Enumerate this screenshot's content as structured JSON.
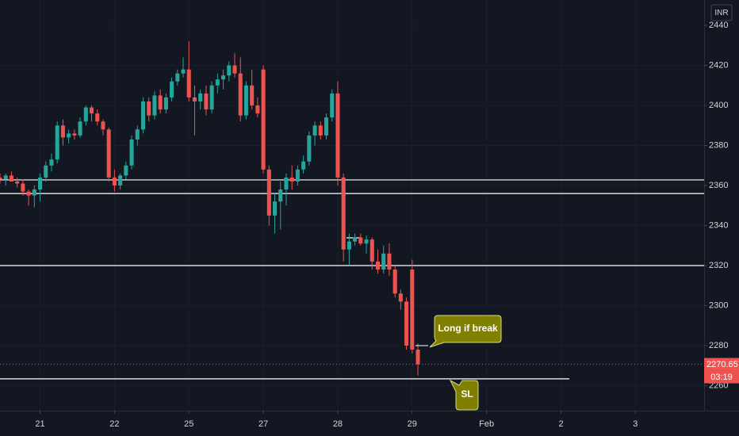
{
  "chart_data": {
    "type": "candlestick",
    "currency": "INR",
    "up_color": "#26a69a",
    "down_color": "#ef5350",
    "grid": true,
    "ylim": [
      2247.5,
      2452.7
    ],
    "yticks": [
      2260,
      2280,
      2300,
      2320,
      2340,
      2360,
      2380,
      2400,
      2420,
      2440
    ],
    "xlim": [
      0,
      123
    ],
    "xticks": [
      {
        "value": 7,
        "label": "21"
      },
      {
        "value": 20,
        "label": "22"
      },
      {
        "value": 33,
        "label": "25"
      },
      {
        "value": 46,
        "label": "27"
      },
      {
        "value": 59,
        "label": "28"
      },
      {
        "value": 72,
        "label": "29"
      },
      {
        "value": 85,
        "label": "Feb"
      },
      {
        "value": 98,
        "label": "2"
      },
      {
        "value": 111,
        "label": "3"
      }
    ],
    "open": [
      2364,
      2363,
      2365,
      2362,
      2361,
      2357,
      2355,
      2358,
      2364,
      2370,
      2373,
      2390,
      2384,
      2386,
      2385,
      2392,
      2399,
      2396,
      2392,
      2388,
      2364,
      2360,
      2365,
      2370,
      2383,
      2388,
      2402,
      2395,
      2405,
      2398,
      2404,
      2412,
      2416,
      2418,
      2404,
      2402,
      2406,
      2398,
      2410,
      2413,
      2415,
      2420,
      2416,
      2395,
      2410,
      2400,
      2418,
      2368,
      2345,
      2352,
      2358,
      2364,
      2362,
      2368,
      2372,
      2385,
      2390,
      2385,
      2394,
      2406,
      2364,
      2328,
      2332,
      2334,
      2331,
      2333,
      2322,
      2318,
      2326,
      2318,
      2306,
      2302,
      2318,
      2278
    ],
    "high": [
      2366,
      2366,
      2367,
      2364,
      2363,
      2358,
      2360,
      2366,
      2372,
      2376,
      2392,
      2393,
      2388,
      2388,
      2394,
      2400,
      2400,
      2398,
      2393,
      2389,
      2368,
      2366,
      2372,
      2385,
      2390,
      2404,
      2404,
      2407,
      2408,
      2406,
      2414,
      2418,
      2424,
      2432,
      2410,
      2408,
      2410,
      2412,
      2416,
      2418,
      2422,
      2426,
      2424,
      2412,
      2418,
      2404,
      2420,
      2370,
      2356,
      2362,
      2366,
      2370,
      2370,
      2375,
      2387,
      2392,
      2392,
      2396,
      2408,
      2412,
      2366,
      2336,
      2336,
      2336,
      2335,
      2334,
      2328,
      2330,
      2331,
      2320,
      2308,
      2304,
      2323,
      2281
    ],
    "low": [
      2361,
      2360,
      2362,
      2359,
      2355,
      2350,
      2349,
      2352,
      2362,
      2367,
      2371,
      2380,
      2381,
      2383,
      2384,
      2390,
      2392,
      2390,
      2385,
      2362,
      2357,
      2358,
      2363,
      2368,
      2380,
      2386,
      2392,
      2393,
      2396,
      2396,
      2402,
      2410,
      2414,
      2402,
      2385,
      2398,
      2395,
      2396,
      2406,
      2408,
      2412,
      2414,
      2392,
      2393,
      2398,
      2394,
      2366,
      2340,
      2336,
      2338,
      2350,
      2358,
      2360,
      2366,
      2370,
      2380,
      2383,
      2383,
      2392,
      2360,
      2322,
      2320,
      2330,
      2330,
      2326,
      2318,
      2316,
      2316,
      2315,
      2304,
      2298,
      2278,
      2276,
      2265
    ],
    "close": [
      2363,
      2365,
      2362,
      2361,
      2357,
      2355,
      2358,
      2364,
      2370,
      2373,
      2390,
      2384,
      2386,
      2385,
      2392,
      2399,
      2396,
      2392,
      2388,
      2364,
      2360,
      2365,
      2370,
      2383,
      2388,
      2402,
      2395,
      2405,
      2398,
      2404,
      2412,
      2416,
      2418,
      2404,
      2402,
      2406,
      2398,
      2410,
      2413,
      2415,
      2420,
      2416,
      2395,
      2410,
      2400,
      2396,
      2368,
      2345,
      2352,
      2358,
      2364,
      2362,
      2368,
      2372,
      2385,
      2390,
      2385,
      2394,
      2406,
      2364,
      2328,
      2332,
      2334,
      2331,
      2333,
      2322,
      2318,
      2326,
      2318,
      2306,
      2302,
      2280,
      2278,
      2270.65
    ],
    "levels": [
      2362.8,
      2356,
      2320,
      2263.4
    ],
    "last_price": 2270.65,
    "countdown": "03:19",
    "annotations": [
      "Long if break",
      "SL"
    ]
  }
}
